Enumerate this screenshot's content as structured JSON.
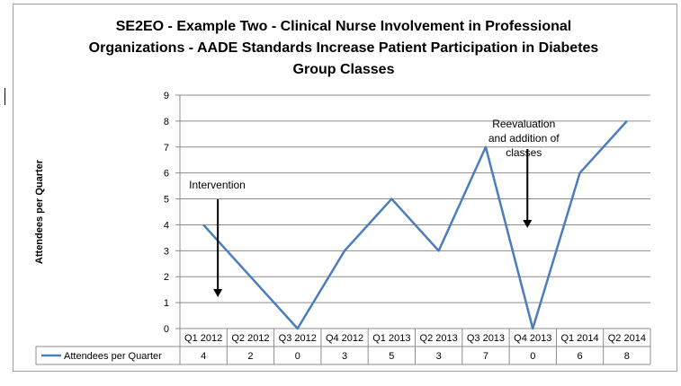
{
  "chart_data": {
    "type": "line",
    "title": "SE2EO - Example Two - Clinical Nurse Involvement in Professional Organizations - AADE Standards Increase Patient Participation in Diabetes Group Classes",
    "title_lines": [
      "SE2EO - Example Two - Clinical Nurse Involvement in Professional",
      "Organizations - AADE Standards Increase Patient Participation in Diabetes",
      "Group Classes"
    ],
    "xlabel": "",
    "ylabel": "Attendees per Quarter",
    "categories": [
      "Q1 2012",
      "Q2 2012",
      "Q3 2012",
      "Q4 2012",
      "Q1 2013",
      "Q2 2013",
      "Q3 2013",
      "Q4 2013",
      "Q1 2014",
      "Q2 2014"
    ],
    "series": [
      {
        "name": "Attendees per Quarter",
        "values": [
          4,
          2,
          0,
          3,
          5,
          3,
          7,
          0,
          6,
          8
        ],
        "color": "#4a7ebb"
      }
    ],
    "ylim": [
      0,
      9
    ],
    "yticks": [
      0,
      1,
      2,
      3,
      4,
      5,
      6,
      7,
      8,
      9
    ],
    "grid": true,
    "legend": "data-table-row",
    "annotations": [
      {
        "lines": [
          "Intervention"
        ],
        "category": "Q1 2012"
      },
      {
        "lines": [
          "Reevaluation",
          "and addition of",
          "classes"
        ],
        "category": "Q4 2013"
      }
    ]
  }
}
